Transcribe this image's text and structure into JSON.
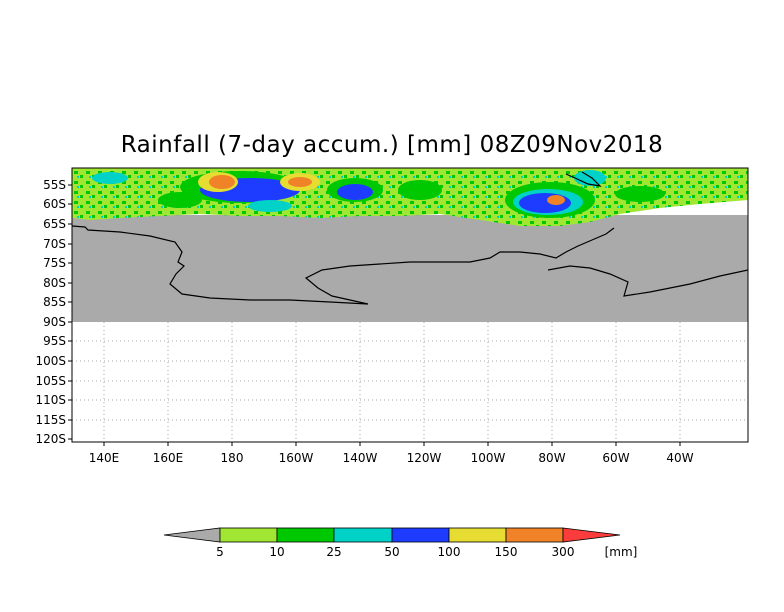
{
  "title": "Rainfall (7-day accum.) [mm] 08Z09Nov2018",
  "latitude_labels": [
    "55S",
    "60S",
    "65S",
    "70S",
    "75S",
    "80S",
    "85S",
    "90S",
    "95S",
    "100S",
    "105S",
    "110S",
    "115S",
    "120S"
  ],
  "longitude_labels": [
    "140E",
    "160E",
    "180",
    "160W",
    "140W",
    "120W",
    "100W",
    "80W",
    "60W",
    "40W"
  ],
  "colorbar": {
    "unit": "[mm]",
    "thresholds": [
      "5",
      "10",
      "25",
      "50",
      "100",
      "150",
      "300"
    ],
    "colors": [
      "#aaaaaa",
      "#a0e632",
      "#00c800",
      "#00d2c8",
      "#1e3cff",
      "#e6dc32",
      "#f08228",
      "#fa3c3c"
    ]
  },
  "colors": {
    "land_mask": "#aaaaaa",
    "coastline": "#000000",
    "grid": "#aaaaaa"
  }
}
